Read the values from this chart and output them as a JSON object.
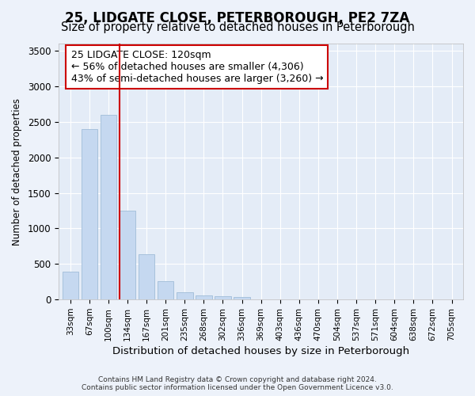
{
  "title1": "25, LIDGATE CLOSE, PETERBOROUGH, PE2 7ZA",
  "title2": "Size of property relative to detached houses in Peterborough",
  "xlabel": "Distribution of detached houses by size in Peterborough",
  "ylabel": "Number of detached properties",
  "footer1": "Contains HM Land Registry data © Crown copyright and database right 2024.",
  "footer2": "Contains public sector information licensed under the Open Government Licence v3.0.",
  "categories": [
    "33sqm",
    "67sqm",
    "100sqm",
    "134sqm",
    "167sqm",
    "201sqm",
    "235sqm",
    "268sqm",
    "302sqm",
    "336sqm",
    "369sqm",
    "403sqm",
    "436sqm",
    "470sqm",
    "504sqm",
    "537sqm",
    "571sqm",
    "604sqm",
    "638sqm",
    "672sqm",
    "705sqm"
  ],
  "values": [
    390,
    2400,
    2600,
    1250,
    640,
    260,
    105,
    60,
    45,
    35,
    0,
    0,
    0,
    0,
    0,
    0,
    0,
    0,
    0,
    0,
    0
  ],
  "bar_color": "#c5d8f0",
  "bar_edge_color": "#a0bcd8",
  "vline_x": 2.57,
  "vline_color": "#cc0000",
  "annotation_text": "25 LIDGATE CLOSE: 120sqm\n← 56% of detached houses are smaller (4,306)\n43% of semi-detached houses are larger (3,260) →",
  "annotation_box_color": "#ffffff",
  "annotation_box_edge": "#cc0000",
  "ylim": [
    0,
    3600
  ],
  "yticks": [
    0,
    500,
    1000,
    1500,
    2000,
    2500,
    3000,
    3500
  ],
  "bg_color": "#edf2fa",
  "plot_bg_color": "#e4ecf7",
  "grid_color": "#ffffff",
  "title1_fontsize": 12,
  "title2_fontsize": 10.5,
  "annotation_fontsize": 9
}
